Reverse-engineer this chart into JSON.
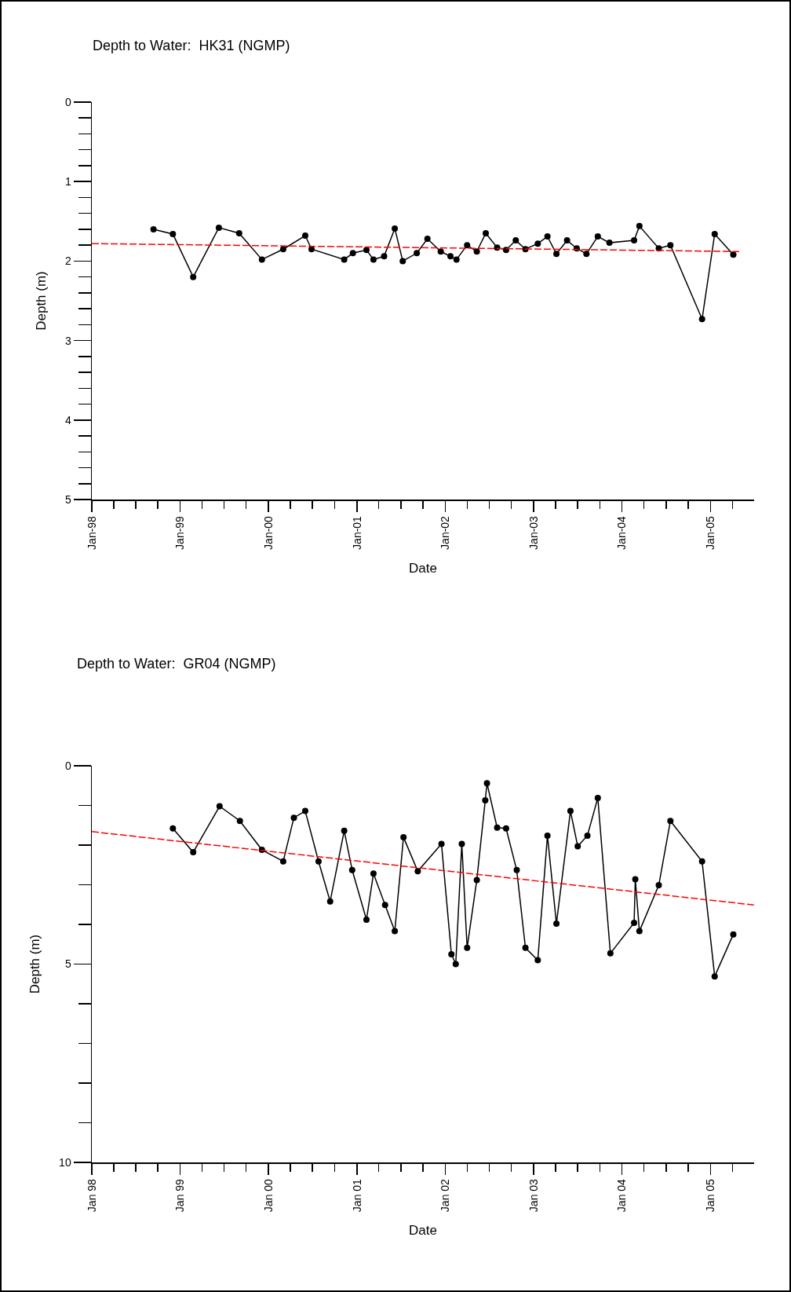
{
  "chart_data": [
    {
      "type": "line",
      "title": "Depth to Water:  HK31 (NGMP)",
      "xlabel": "Date",
      "ylabel": "Depth (m)",
      "xlim": [
        "1998-01-01",
        "2005-06-30"
      ],
      "ylim": [
        5,
        0
      ],
      "xticks": [
        {
          "value": "1998-01-01",
          "label": "Jan-98"
        },
        {
          "value": "1998-04-01",
          "label": null
        },
        {
          "value": "1998-07-01",
          "label": null
        },
        {
          "value": "1998-10-01",
          "label": null
        },
        {
          "value": "1999-01-01",
          "label": "Jan-99"
        },
        {
          "value": "1999-04-01",
          "label": null
        },
        {
          "value": "1999-07-01",
          "label": null
        },
        {
          "value": "1999-10-01",
          "label": null
        },
        {
          "value": "2000-01-01",
          "label": "Jan-00"
        },
        {
          "value": "2000-04-01",
          "label": null
        },
        {
          "value": "2000-07-01",
          "label": null
        },
        {
          "value": "2000-10-01",
          "label": null
        },
        {
          "value": "2001-01-01",
          "label": "Jan-01"
        },
        {
          "value": "2001-04-01",
          "label": null
        },
        {
          "value": "2001-07-01",
          "label": null
        },
        {
          "value": "2001-10-01",
          "label": null
        },
        {
          "value": "2002-01-01",
          "label": "Jan-02"
        },
        {
          "value": "2002-04-01",
          "label": null
        },
        {
          "value": "2002-07-01",
          "label": null
        },
        {
          "value": "2002-10-01",
          "label": null
        },
        {
          "value": "2003-01-01",
          "label": "Jan-03"
        },
        {
          "value": "2003-04-01",
          "label": null
        },
        {
          "value": "2003-07-01",
          "label": null
        },
        {
          "value": "2003-10-01",
          "label": null
        },
        {
          "value": "2004-01-01",
          "label": "Jan-04"
        },
        {
          "value": "2004-04-01",
          "label": null
        },
        {
          "value": "2004-07-01",
          "label": null
        },
        {
          "value": "2004-10-01",
          "label": null
        },
        {
          "value": "2005-01-01",
          "label": "Jan-05"
        },
        {
          "value": "2005-04-01",
          "label": null
        }
      ],
      "yticks": [
        0,
        {
          "value": 0.2,
          "label": null
        },
        {
          "value": 0.4,
          "label": null
        },
        {
          "value": 0.6,
          "label": null
        },
        {
          "value": 0.8,
          "label": null
        },
        1,
        {
          "value": 1.2,
          "label": null
        },
        {
          "value": 1.4,
          "label": null
        },
        {
          "value": 1.6,
          "label": null
        },
        {
          "value": 1.8,
          "label": null
        },
        2,
        {
          "value": 2.2,
          "label": null
        },
        {
          "value": 2.4,
          "label": null
        },
        {
          "value": 2.6,
          "label": null
        },
        {
          "value": 2.8,
          "label": null
        },
        3,
        {
          "value": 3.2,
          "label": null
        },
        {
          "value": 3.4,
          "label": null
        },
        {
          "value": 3.6,
          "label": null
        },
        {
          "value": 3.8,
          "label": null
        },
        4,
        {
          "value": 4.2,
          "label": null
        },
        {
          "value": 4.4,
          "label": null
        },
        {
          "value": 4.6,
          "label": null
        },
        {
          "value": 4.8,
          "label": null
        },
        5
      ],
      "series": [
        {
          "color": "#000000",
          "marker": "circle",
          "line_style": "solid",
          "x": [
            "1998-09-13",
            "1998-12-02",
            "1999-02-24",
            "1999-06-10",
            "1999-09-02",
            "1999-12-05",
            "2000-03-02",
            "2000-06-01",
            "2000-06-27",
            "2000-11-09",
            "2000-12-15",
            "2001-02-09",
            "2001-03-10",
            "2001-04-23",
            "2001-06-06",
            "2001-07-09",
            "2001-09-05",
            "2001-10-19",
            "2001-12-13",
            "2002-01-22",
            "2002-02-16",
            "2002-04-01",
            "2002-05-11",
            "2002-06-17",
            "2002-08-03",
            "2002-09-09",
            "2002-10-19",
            "2002-11-28",
            "2003-01-18",
            "2003-02-27",
            "2003-04-05",
            "2003-05-19",
            "2003-06-28",
            "2003-08-07",
            "2003-09-23",
            "2003-11-10",
            "2004-02-20",
            "2004-03-13",
            "2004-06-01",
            "2004-07-19",
            "2004-11-27",
            "2005-01-18",
            "2005-04-05"
          ],
          "values": [
            1.6,
            1.66,
            2.2,
            1.58,
            1.65,
            1.98,
            1.85,
            1.68,
            1.85,
            1.98,
            1.9,
            1.86,
            1.98,
            1.94,
            1.59,
            2.0,
            1.9,
            1.72,
            1.88,
            1.94,
            1.98,
            1.8,
            1.88,
            1.65,
            1.83,
            1.86,
            1.74,
            1.85,
            1.78,
            1.69,
            1.91,
            1.74,
            1.84,
            1.91,
            1.69,
            1.77,
            1.74,
            1.56,
            1.84,
            1.8,
            2.73,
            1.66,
            1.92
          ]
        },
        {
          "color": "#ff0000",
          "marker": "none",
          "line_style": "dashed",
          "x": [
            "1998-01-01",
            "2005-05-01"
          ],
          "values": [
            1.78,
            1.88
          ]
        }
      ]
    },
    {
      "type": "line",
      "title": "Depth to Water:  GR04 (NGMP)",
      "xlabel": "Date",
      "ylabel": "Depth (m)",
      "xlim": [
        "1998-01-01",
        "2005-06-30"
      ],
      "ylim": [
        10,
        0
      ],
      "xticks": [
        {
          "value": "1998-01-01",
          "label": "Jan 98"
        },
        {
          "value": "1998-04-01",
          "label": null
        },
        {
          "value": "1998-07-01",
          "label": null
        },
        {
          "value": "1998-10-01",
          "label": null
        },
        {
          "value": "1999-01-01",
          "label": "Jan 99"
        },
        {
          "value": "1999-04-01",
          "label": null
        },
        {
          "value": "1999-07-01",
          "label": null
        },
        {
          "value": "1999-10-01",
          "label": null
        },
        {
          "value": "2000-01-01",
          "label": "Jan 00"
        },
        {
          "value": "2000-04-01",
          "label": null
        },
        {
          "value": "2000-07-01",
          "label": null
        },
        {
          "value": "2000-10-01",
          "label": null
        },
        {
          "value": "2001-01-01",
          "label": "Jan 01"
        },
        {
          "value": "2001-04-01",
          "label": null
        },
        {
          "value": "2001-07-01",
          "label": null
        },
        {
          "value": "2001-10-01",
          "label": null
        },
        {
          "value": "2002-01-01",
          "label": "Jan 02"
        },
        {
          "value": "2002-04-01",
          "label": null
        },
        {
          "value": "2002-07-01",
          "label": null
        },
        {
          "value": "2002-10-01",
          "label": null
        },
        {
          "value": "2003-01-01",
          "label": "Jan 03"
        },
        {
          "value": "2003-04-01",
          "label": null
        },
        {
          "value": "2003-07-01",
          "label": null
        },
        {
          "value": "2003-10-01",
          "label": null
        },
        {
          "value": "2004-01-01",
          "label": "Jan 04"
        },
        {
          "value": "2004-04-01",
          "label": null
        },
        {
          "value": "2004-07-01",
          "label": null
        },
        {
          "value": "2004-10-01",
          "label": null
        },
        {
          "value": "2005-01-01",
          "label": "Jan 05"
        },
        {
          "value": "2005-04-01",
          "label": null
        }
      ],
      "yticks": [
        0,
        {
          "value": 1,
          "label": null
        },
        {
          "value": 2,
          "label": null
        },
        {
          "value": 3,
          "label": null
        },
        {
          "value": 4,
          "label": null
        },
        5,
        {
          "value": 6,
          "label": null
        },
        {
          "value": 7,
          "label": null
        },
        {
          "value": 8,
          "label": null
        },
        {
          "value": 9,
          "label": null
        },
        10
      ],
      "series": [
        {
          "color": "#000000",
          "marker": "circle",
          "line_style": "solid",
          "x": [
            "1998-12-02",
            "1999-02-24",
            "1999-06-13",
            "1999-09-05",
            "1999-12-05",
            "2000-03-02",
            "2000-04-15",
            "2000-06-01",
            "2000-07-26",
            "2000-09-12",
            "2000-11-09",
            "2000-12-12",
            "2001-02-09",
            "2001-03-10",
            "2001-04-27",
            "2001-06-06",
            "2001-07-12",
            "2001-09-09",
            "2001-12-16",
            "2002-01-26",
            "2002-02-13",
            "2002-03-10",
            "2002-04-01",
            "2002-05-11",
            "2002-06-15",
            "2002-06-22",
            "2002-08-03",
            "2002-09-09",
            "2002-10-23",
            "2002-11-28",
            "2003-01-18",
            "2003-02-27",
            "2003-04-05",
            "2003-06-02",
            "2003-07-02",
            "2003-08-11",
            "2003-09-23",
            "2003-11-14",
            "2004-02-20",
            "2004-02-25",
            "2004-03-13",
            "2004-06-01",
            "2004-07-19",
            "2004-11-27",
            "2005-01-18",
            "2005-04-05"
          ],
          "values": [
            1.58,
            2.18,
            1.02,
            1.39,
            2.12,
            2.41,
            1.31,
            1.14,
            2.41,
            3.42,
            1.64,
            2.63,
            3.88,
            2.72,
            3.51,
            4.17,
            1.8,
            2.66,
            1.97,
            4.75,
            5.0,
            1.97,
            4.59,
            2.88,
            0.87,
            0.44,
            1.56,
            1.58,
            2.63,
            4.59,
            4.9,
            1.76,
            3.98,
            1.14,
            2.03,
            1.76,
            0.81,
            4.73,
            3.96,
            2.86,
            4.17,
            3.01,
            1.39,
            2.41,
            5.31,
            4.25
          ]
        },
        {
          "color": "#ff0000",
          "marker": "none",
          "line_style": "dashed",
          "x": [
            "1998-01-01",
            "2005-06-30"
          ],
          "values": [
            1.66,
            3.51
          ]
        }
      ]
    }
  ]
}
